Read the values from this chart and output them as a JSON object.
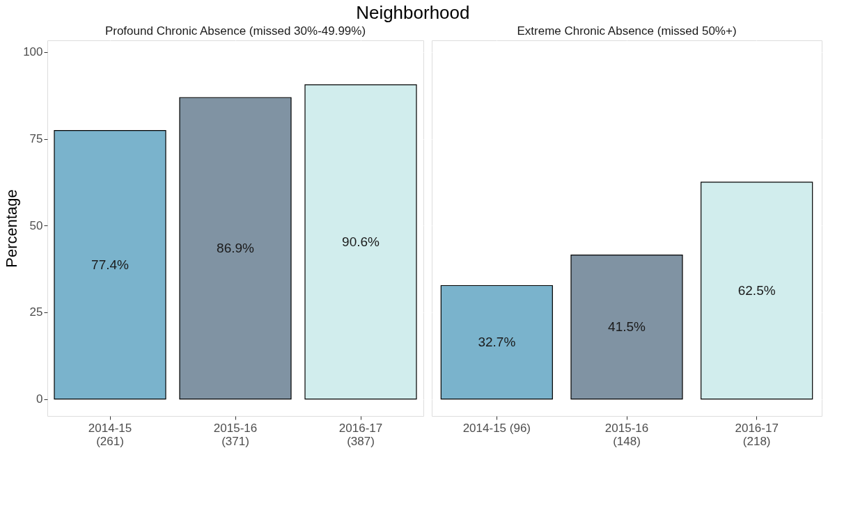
{
  "chart_data": [
    {
      "type": "bar",
      "title": "Neighborhood",
      "subtitle": "Profound Chronic Absence (missed 30%-49.99%)",
      "ylabel": "Percentage",
      "categories": [
        "2014-15\n(261)",
        "2015-16\n(371)",
        "2016-17\n(387)"
      ],
      "values": [
        77.4,
        86.9,
        90.6
      ],
      "colors": [
        "#7ab3cc",
        "#8093a3",
        "#d1eded"
      ],
      "value_labels": [
        "77.4%",
        "86.9%",
        "90.6%"
      ],
      "ylim": [
        -4.9,
        103.4
      ],
      "yticks": [
        0,
        25,
        50,
        75,
        100
      ],
      "grid": true,
      "legend": false
    },
    {
      "type": "bar",
      "subtitle": "Extreme Chronic Absence (missed 50%+)",
      "categories": [
        "2014-15 (96)",
        "2015-16\n(148)",
        "2016-17\n(218)"
      ],
      "values": [
        32.7,
        41.5,
        62.5
      ],
      "colors": [
        "#7ab3cc",
        "#8093a3",
        "#d1eded"
      ],
      "value_labels": [
        "32.7%",
        "41.5%",
        "62.5%"
      ],
      "ylim": [
        -4.9,
        103.4
      ],
      "yticks": [
        0,
        25,
        50,
        75,
        100
      ],
      "grid": true,
      "legend": false,
      "tick_labels": "x"
    }
  ]
}
